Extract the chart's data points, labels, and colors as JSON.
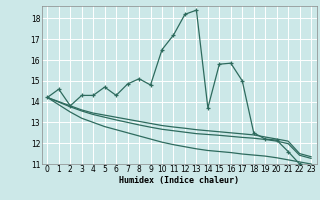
{
  "xlabel": "Humidex (Indice chaleur)",
  "bg_color": "#cce8e8",
  "grid_color": "#ffffff",
  "line_color": "#2e6b5e",
  "xlim": [
    -0.5,
    23.5
  ],
  "ylim": [
    11,
    18.6
  ],
  "yticks": [
    11,
    12,
    13,
    14,
    15,
    16,
    17,
    18
  ],
  "xticks": [
    0,
    1,
    2,
    3,
    4,
    5,
    6,
    7,
    8,
    9,
    10,
    11,
    12,
    13,
    14,
    15,
    16,
    17,
    18,
    19,
    20,
    21,
    22,
    23
  ],
  "line1_x": [
    0,
    1,
    2,
    3,
    4,
    5,
    6,
    7,
    8,
    9,
    10,
    11,
    12,
    13,
    14,
    15,
    16,
    17,
    18,
    19,
    20,
    21,
    22,
    23
  ],
  "line1_y": [
    14.2,
    14.6,
    13.8,
    14.3,
    14.3,
    14.7,
    14.3,
    14.85,
    15.1,
    14.8,
    16.5,
    17.2,
    18.2,
    18.4,
    13.7,
    15.8,
    15.85,
    15.0,
    12.5,
    12.2,
    12.15,
    11.6,
    11.0,
    10.9
  ],
  "line2_x": [
    0,
    2,
    3,
    4,
    5,
    6,
    7,
    8,
    9,
    10,
    11,
    12,
    13,
    14,
    15,
    16,
    17,
    18,
    19,
    20,
    21,
    22,
    23
  ],
  "line2_y": [
    14.2,
    13.8,
    13.6,
    13.45,
    13.35,
    13.25,
    13.15,
    13.05,
    12.95,
    12.85,
    12.78,
    12.72,
    12.65,
    12.6,
    12.55,
    12.5,
    12.45,
    12.4,
    12.3,
    12.2,
    12.1,
    11.5,
    11.35
  ],
  "line3_x": [
    0,
    2,
    3,
    4,
    5,
    6,
    7,
    8,
    9,
    10,
    11,
    12,
    13,
    14,
    15,
    16,
    17,
    18,
    19,
    20,
    21,
    22,
    23
  ],
  "line3_y": [
    14.2,
    13.75,
    13.55,
    13.38,
    13.25,
    13.12,
    13.0,
    12.88,
    12.77,
    12.67,
    12.6,
    12.53,
    12.46,
    12.42,
    12.38,
    12.33,
    12.28,
    12.24,
    12.18,
    12.1,
    11.98,
    11.42,
    11.27
  ],
  "line4_x": [
    0,
    2,
    3,
    4,
    5,
    6,
    7,
    8,
    9,
    10,
    11,
    12,
    13,
    14,
    15,
    16,
    17,
    18,
    19,
    20,
    21,
    22,
    23
  ],
  "line4_y": [
    14.2,
    13.5,
    13.2,
    13.0,
    12.8,
    12.65,
    12.5,
    12.35,
    12.2,
    12.05,
    11.93,
    11.83,
    11.73,
    11.65,
    11.6,
    11.55,
    11.48,
    11.43,
    11.38,
    11.3,
    11.2,
    11.1,
    11.0
  ]
}
